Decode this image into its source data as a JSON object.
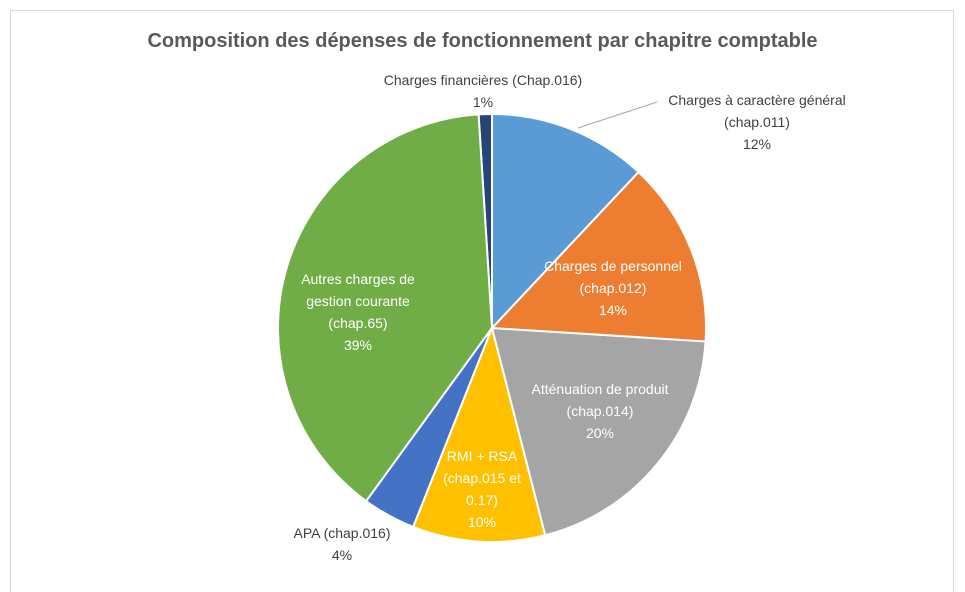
{
  "chart_data": {
    "type": "pie",
    "title": "Composition des dépenses de fonctionnement par chapitre comptable",
    "categories": [
      "Charges à caractère général\n(chap.011)",
      "Charges de personnel\n(chap.012)",
      "Atténuation de produit\n(chap.014)",
      "RMI + RSA\n(chap.015 et\n0.17)",
      "APA (chap.016)",
      "Autres charges de\ngestion courante\n(chap.65)",
      "Charges financières (Chap.016)"
    ],
    "values": [
      12,
      14,
      20,
      10,
      4,
      39,
      1
    ],
    "value_labels": [
      "12%",
      "14%",
      "20%",
      "10%",
      "4%",
      "39%",
      "1%"
    ],
    "colors": [
      "#5b9bd5",
      "#ed7d31",
      "#a5a5a5",
      "#ffc000",
      "#4472c4",
      "#70ad47",
      "#264478"
    ]
  }
}
